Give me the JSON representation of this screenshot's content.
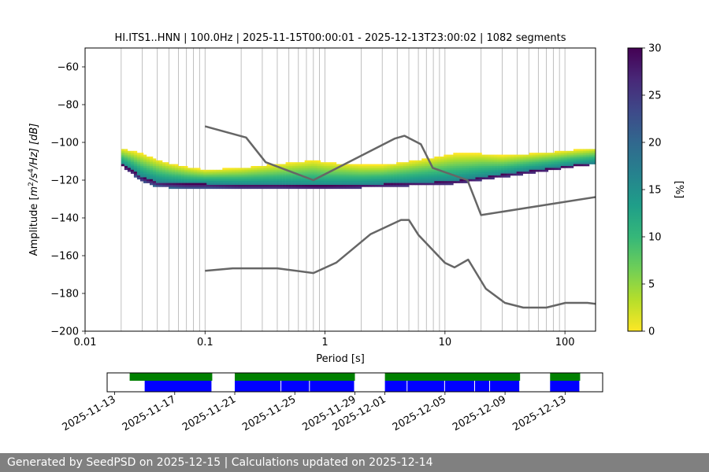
{
  "chart_data": [
    {
      "type": "heatmap",
      "title": "HI.ITS1..HNN | 100.0Hz | 2025-11-15T00:00:01 - 2025-12-13T23:00:02 | 1082 segments",
      "xlabel": "Period [s]",
      "ylabel": "Amplitude [m2/s4/Hz] [dB]",
      "ylabel_parts": {
        "pre": "Amplitude [",
        "m": "m",
        "exp1": "2",
        "mid": "/s",
        "exp2": "4",
        "post": "/Hz] [dB]"
      },
      "xscale": "log",
      "xlim": [
        0.01,
        180
      ],
      "ylim": [
        -200,
        -50
      ],
      "x_ticks": [
        {
          "value": 0.01,
          "label": "0.01"
        },
        {
          "value": 0.1,
          "label": "0.1"
        },
        {
          "value": 1,
          "label": "1"
        },
        {
          "value": 10,
          "label": "10"
        },
        {
          "value": 100,
          "label": "100"
        }
      ],
      "y_ticks": [
        {
          "value": -200,
          "label": "−200"
        },
        {
          "value": -180,
          "label": "−180"
        },
        {
          "value": -160,
          "label": "−160"
        },
        {
          "value": -140,
          "label": "−140"
        },
        {
          "value": -120,
          "label": "−120"
        },
        {
          "value": -100,
          "label": "−100"
        },
        {
          "value": -80,
          "label": "−80"
        },
        {
          "value": -60,
          "label": "−60"
        }
      ],
      "vertical_grid_periods": [
        0.02,
        0.03,
        0.04,
        0.05,
        0.06,
        0.07,
        0.08,
        0.09,
        0.1,
        0.2,
        0.3,
        0.4,
        0.5,
        0.6,
        0.7,
        0.8,
        0.9,
        1,
        2,
        3,
        4,
        5,
        6,
        7,
        8,
        9,
        10,
        20,
        30,
        40,
        50,
        60,
        70,
        80,
        90,
        100
      ],
      "grid": "vertical",
      "colorbar": {
        "label": "[%]",
        "range": [
          0,
          30
        ],
        "ticks": [
          {
            "value": 0,
            "label": "0"
          },
          {
            "value": 5,
            "label": "5"
          },
          {
            "value": 10,
            "label": "10"
          },
          {
            "value": 15,
            "label": "15"
          },
          {
            "value": 20,
            "label": "20"
          },
          {
            "value": 25,
            "label": "25"
          },
          {
            "value": 30,
            "label": "30"
          }
        ],
        "colormap": [
          "#fde725",
          "#b5de2b",
          "#6ece58",
          "#35b779",
          "#1f9e89",
          "#26828e",
          "#31688e",
          "#3e4989",
          "#482878",
          "#440154"
        ]
      },
      "noise_model_high": {
        "period": [
          0.1,
          0.22,
          0.32,
          0.8,
          3.8,
          4.6,
          6.3,
          7.9,
          15.4,
          20,
          354
        ],
        "db": [
          -91.5,
          -97.4,
          -110.5,
          -120,
          -98,
          -96.5,
          -101,
          -113.5,
          -120,
          -138.5,
          -126
        ]
      },
      "noise_model_low": {
        "period": [
          0.1,
          0.17,
          0.4,
          0.8,
          1.24,
          2.4,
          4.3,
          5,
          6,
          10,
          12,
          15.6,
          21.9,
          31.6,
          45,
          70,
          101,
          154,
          328
        ],
        "db": [
          -168,
          -166.7,
          -166.7,
          -169.2,
          -163.7,
          -148.6,
          -141.1,
          -141.1,
          -149,
          -163.8,
          -166.2,
          -162.1,
          -177.5,
          -185,
          -187.5,
          -187.5,
          -185,
          -185,
          -187.5
        ]
      },
      "psd_mode_band": {
        "period": [
          0.02,
          0.025,
          0.03,
          0.04,
          0.05,
          0.07,
          0.1,
          0.2,
          0.4,
          0.8,
          1,
          2,
          3,
          5,
          8,
          12,
          20,
          30,
          50,
          80,
          120,
          180
        ],
        "db_low": [
          -112,
          -117,
          -121,
          -123.5,
          -124,
          -124.5,
          -124.5,
          -124.5,
          -124.5,
          -124.5,
          -124.5,
          -124,
          -123.5,
          -123,
          -122.5,
          -122,
          -120,
          -118.5,
          -116.5,
          -114.5,
          -113,
          -111.5
        ],
        "db_high": [
          -103,
          -104.5,
          -106,
          -109,
          -111,
          -113,
          -114.5,
          -113.5,
          -111.5,
          -109.5,
          -110.5,
          -112,
          -112,
          -110,
          -108,
          -106,
          -106,
          -107,
          -106,
          -105,
          -104,
          -103
        ],
        "db_mode": [
          -111.5,
          -115,
          -118.5,
          -121,
          -121.5,
          -122,
          -122,
          -122.5,
          -122.5,
          -123,
          -123,
          -122.5,
          -122,
          -121.5,
          -121,
          -120.5,
          -118.5,
          -117,
          -115,
          -113.5,
          -112,
          -111
        ]
      }
    },
    {
      "type": "timeline",
      "x_tick_labels": [
        "2025-11-13",
        "2025-11-17",
        "2025-11-21",
        "2025-11-25",
        "2025-11-29",
        "2025-12-01",
        "2025-12-05",
        "2025-12-09",
        "2025-12-13"
      ],
      "x_tick_days": [
        0,
        4,
        8,
        12,
        16,
        18,
        22,
        26,
        30
      ],
      "xlim_days": [
        -0.5,
        32.5
      ],
      "data_available_color": "#008000",
      "psd_computed_color": "#0000ff",
      "data_spans_days": [
        [
          1,
          6.5
        ],
        [
          8,
          16
        ],
        [
          18,
          27
        ],
        [
          29,
          31
        ]
      ],
      "psd_spans_days": [
        [
          2,
          6.5
        ],
        [
          8,
          11.1
        ],
        [
          11.1,
          13
        ],
        [
          13,
          16
        ],
        [
          18,
          19.5
        ],
        [
          19.5,
          22
        ],
        [
          22,
          24
        ],
        [
          24,
          25
        ],
        [
          25,
          27
        ],
        [
          29,
          31
        ]
      ]
    }
  ],
  "footer": {
    "text": "Generated by SeedPSD on 2025-12-15 | Calculations updated on 2025-12-14"
  }
}
